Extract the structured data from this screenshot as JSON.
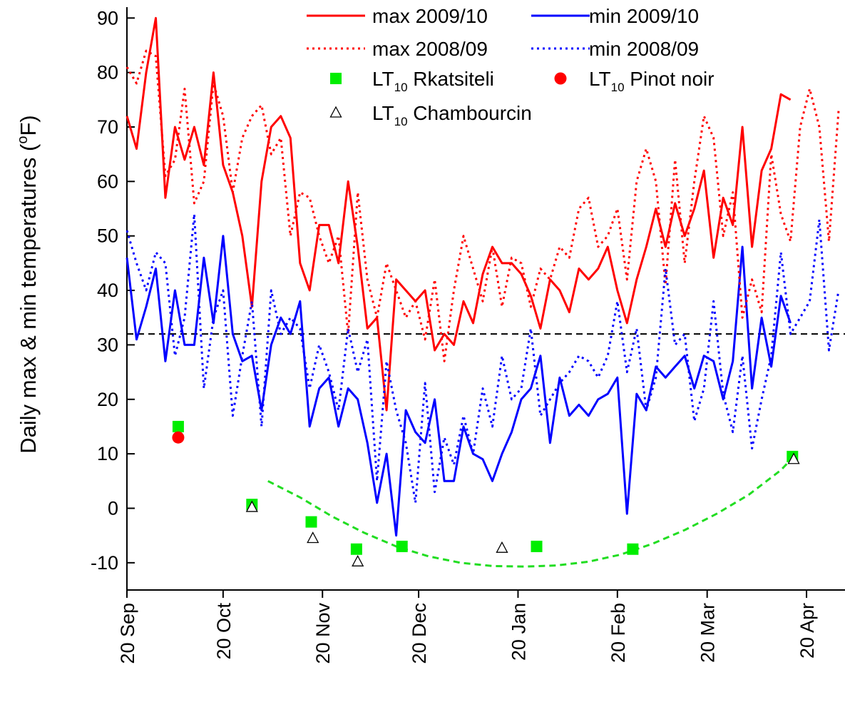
{
  "chart_data": {
    "type": "line",
    "ylabel": "Daily max & min temperatures (oF)",
    "xlim": [
      0,
      224
    ],
    "xticks": [
      {
        "value": 0,
        "label": "20 Sep"
      },
      {
        "value": 30,
        "label": "20 Oct"
      },
      {
        "value": 61,
        "label": "20 Nov"
      },
      {
        "value": 91,
        "label": "20 Dec"
      },
      {
        "value": 122,
        "label": "20 Jan"
      },
      {
        "value": 153,
        "label": "20 Feb"
      },
      {
        "value": 181,
        "label": "20 Mar"
      },
      {
        "value": 212,
        "label": "20 Apr"
      }
    ],
    "ylim": [
      -15,
      92
    ],
    "yticks": [
      -10,
      0,
      10,
      20,
      30,
      40,
      50,
      60,
      70,
      80,
      90
    ],
    "reference_line": 32,
    "legend": "top-right",
    "x": [
      0,
      3,
      6,
      9,
      12,
      15,
      18,
      21,
      24,
      27,
      30,
      33,
      36,
      39,
      42,
      45,
      48,
      51,
      54,
      57,
      60,
      63,
      66,
      69,
      72,
      75,
      78,
      81,
      84,
      87,
      90,
      93,
      96,
      99,
      102,
      105,
      108,
      111,
      114,
      117,
      120,
      123,
      126,
      129,
      132,
      135,
      138,
      141,
      144,
      147,
      150,
      153,
      156,
      159,
      162,
      165,
      168,
      171,
      174,
      177,
      180,
      183,
      186,
      189,
      192,
      195,
      198,
      201,
      204,
      207,
      210,
      213,
      216,
      219,
      222
    ],
    "series": [
      {
        "name": "max 2009/10",
        "color": "#ff0000",
        "style": "solid",
        "values": [
          72,
          66,
          80,
          90,
          57,
          70,
          64,
          70,
          63,
          80,
          63,
          58,
          50,
          37,
          60,
          70,
          72,
          68,
          45,
          40,
          52,
          52,
          45,
          60,
          48,
          33,
          35,
          18,
          42,
          40,
          38,
          40,
          29,
          32,
          30,
          38,
          34,
          43,
          48,
          45,
          45,
          43,
          39,
          33,
          42,
          40,
          36,
          44,
          42,
          44,
          48,
          40,
          34,
          42,
          48,
          55,
          48,
          56,
          50,
          55,
          62,
          46,
          57,
          52,
          70,
          48,
          62,
          66,
          76,
          75,
          null,
          null,
          null,
          null,
          null
        ]
      },
      {
        "name": "min 2009/10",
        "color": "#0000ff",
        "style": "solid",
        "values": [
          46,
          31,
          37,
          44,
          27,
          40,
          30,
          30,
          46,
          34,
          50,
          32,
          27,
          28,
          18,
          30,
          35,
          32,
          38,
          15,
          22,
          24,
          15,
          22,
          20,
          12,
          1,
          10,
          -5,
          18,
          14,
          12,
          20,
          5,
          5,
          15,
          10,
          9,
          5,
          10,
          14,
          20,
          22,
          28,
          12,
          24,
          17,
          19,
          17,
          20,
          21,
          24,
          -1,
          21,
          18,
          26,
          24,
          26,
          28,
          22,
          28,
          27,
          20,
          27,
          48,
          22,
          35,
          26,
          39,
          34,
          null,
          null,
          null,
          null,
          null
        ]
      },
      {
        "name": "max 2008/09",
        "color": "#ff0000",
        "style": "dotted",
        "values": [
          81,
          78,
          84,
          83,
          61,
          64,
          77,
          56,
          60,
          78,
          72,
          58,
          68,
          72,
          74,
          65,
          68,
          50,
          58,
          57,
          50,
          45,
          50,
          32,
          58,
          42,
          35,
          45,
          40,
          35,
          38,
          31,
          42,
          27,
          40,
          50,
          44,
          38,
          48,
          37,
          46,
          45,
          37,
          44,
          42,
          48,
          46,
          55,
          57,
          48,
          50,
          55,
          42,
          60,
          66,
          60,
          41,
          64,
          45,
          60,
          72,
          68,
          50,
          58,
          35,
          42,
          36,
          65,
          54,
          49,
          70,
          77,
          70,
          49,
          73
        ]
      },
      {
        "name": "min 2008/09",
        "color": "#0000ff",
        "style": "dotted",
        "values": [
          51,
          45,
          40,
          47,
          45,
          28,
          35,
          54,
          22,
          35,
          40,
          17,
          28,
          38,
          15,
          40,
          32,
          35,
          33,
          22,
          30,
          25,
          18,
          33,
          25,
          31,
          5,
          27,
          18,
          12,
          1,
          23,
          3,
          13,
          8,
          17,
          10,
          22,
          15,
          28,
          20,
          22,
          33,
          17,
          20,
          23,
          25,
          28,
          27,
          24,
          28,
          38,
          25,
          33,
          18,
          24,
          44,
          30,
          32,
          16,
          22,
          38,
          21,
          14,
          28,
          11,
          20,
          28,
          47,
          32,
          35,
          38,
          53,
          29,
          40
        ]
      }
    ],
    "markers": [
      {
        "name": "LT10 Rkatsiteli",
        "color": "#00ee00",
        "marker": "square",
        "x": [
          16,
          39,
          57.5,
          71.6,
          85.8,
          127.8,
          157.8,
          207.6
        ],
        "values": [
          15,
          0.7,
          -2.5,
          -7.5,
          -7,
          -7,
          -7.5,
          9.5
        ]
      },
      {
        "name": "LT10 Pinot noir",
        "color": "#ff0000",
        "marker": "circle",
        "x": [
          16
        ],
        "values": [
          13
        ]
      },
      {
        "name": "LT10 Chambourcin",
        "color": "#000000",
        "marker": "triangle",
        "x": [
          39,
          58,
          72,
          117,
          208
        ],
        "values": [
          0.2,
          -5.5,
          -9.8,
          -7.3,
          9
        ]
      }
    ],
    "fit": {
      "color": "#22dd22",
      "style": "dashed",
      "x": [
        44,
        54,
        64,
        74,
        84,
        94,
        104,
        114,
        124,
        134,
        144,
        154,
        164,
        174,
        184,
        194,
        204,
        208
      ],
      "values": [
        5,
        2,
        -1.5,
        -4.5,
        -7,
        -8.8,
        -10,
        -10.6,
        -10.7,
        -10.5,
        -9.8,
        -8.5,
        -6.5,
        -4,
        -1,
        2.5,
        7,
        9.5
      ]
    }
  }
}
